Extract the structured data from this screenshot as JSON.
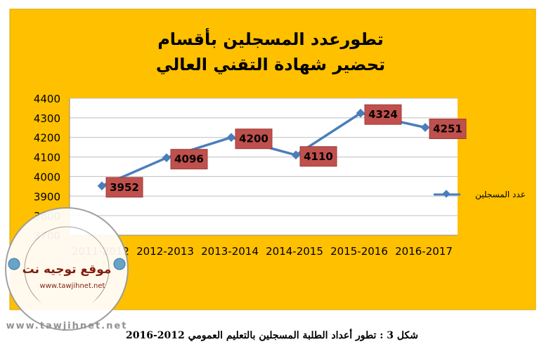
{
  "chart_data": {
    "type": "line",
    "title_lines": [
      "تطورعدد المسجلين بأقسام",
      "تحضير شهادة التقني العالي"
    ],
    "categories": [
      "2011-2012",
      "2012-2013",
      "2013-2014",
      "2014-2015",
      "2015-2016",
      "2016-2017"
    ],
    "series": [
      {
        "name": "عدد المسجلين",
        "values": [
          3952,
          4096,
          4200,
          4110,
          4324,
          4251
        ]
      }
    ],
    "data_labels": [
      "3952",
      "4096",
      "4200",
      "4110",
      "4324",
      "4251"
    ],
    "y_ticks": [
      "3700",
      "3800",
      "3900",
      "4000",
      "4100",
      "4200",
      "4300",
      "4400"
    ],
    "ylim": [
      3700,
      4400
    ],
    "grid": true,
    "legend_position": "right",
    "colors": {
      "background": "#FFC000",
      "plot_area": "#FFFFFF",
      "line": "#4A7EBB",
      "label_box": "#C0504D",
      "label_text": "#000000",
      "gridline": "#BFBFBF"
    }
  },
  "watermark": {
    "site_name": "موقع توجيه نت",
    "url": "www.tawjihnet.net",
    "ring_text": "www.tawjihnet.net"
  },
  "caption": "شكل 3 : تطور أعداد الطلبة المسجلين بالتعليم العمومي 2012-2016"
}
